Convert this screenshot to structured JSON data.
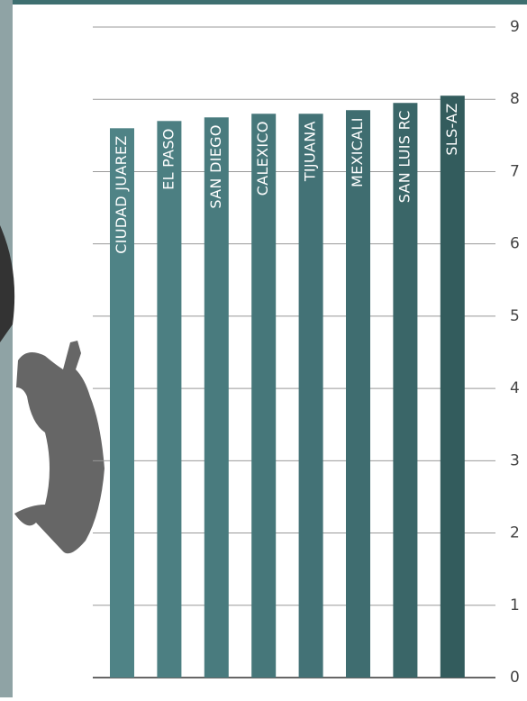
{
  "chart_data": {
    "type": "bar",
    "categories": [
      "CIUDAD JUAREZ",
      "EL PASO",
      "SAN DIEGO",
      "CALEXICO",
      "TIJUANA",
      "MEXICALI",
      "SAN LUIS RC",
      "SLS-AZ"
    ],
    "values": [
      7.6,
      7.7,
      7.75,
      7.8,
      7.8,
      7.85,
      7.95,
      8.05
    ],
    "colors": [
      "#4f8386",
      "#4c7f82",
      "#497b7e",
      "#46777a",
      "#437276",
      "#3f6d70",
      "#3a6668",
      "#335c5d"
    ],
    "ylim": [
      0,
      9
    ],
    "yticks": [
      0,
      1,
      2,
      3,
      4,
      5,
      6,
      7,
      8,
      9
    ],
    "grid": true
  }
}
